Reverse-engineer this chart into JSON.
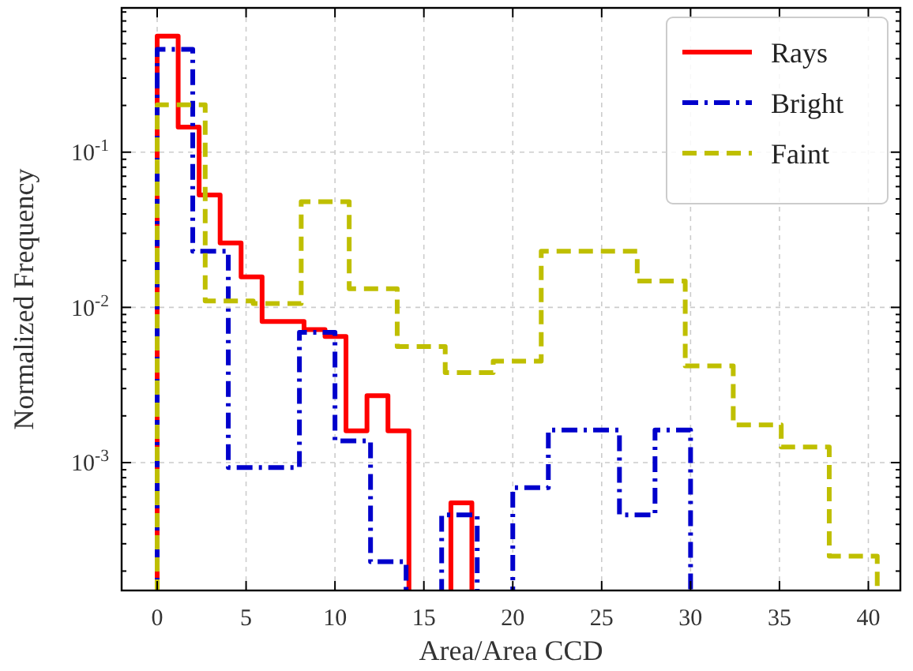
{
  "chart_data": {
    "type": "step",
    "xlabel": "Area/Area CCD",
    "ylabel": "Normalized Frequency",
    "log": "y",
    "grid": true,
    "legend": "top right",
    "xlim": [
      -2,
      41.8
    ],
    "xticks": [
      0,
      5,
      10,
      15,
      20,
      25,
      30,
      35,
      40
    ],
    "ylim": [
      0.00015,
      0.85
    ],
    "yticks": [
      {
        "value": 0.0002,
        "label": null
      },
      {
        "value": 0.0003,
        "label": null
      },
      {
        "value": 0.0004,
        "label": null
      },
      {
        "value": 0.0005,
        "label": null
      },
      {
        "value": 0.0006,
        "label": null
      },
      {
        "value": 0.0007,
        "label": null
      },
      {
        "value": 0.0008,
        "label": null
      },
      {
        "value": 0.0009,
        "label": null
      },
      {
        "value": 0.001,
        "label": "10$^{-3}$"
      },
      {
        "value": 0.002,
        "label": null
      },
      {
        "value": 0.003,
        "label": null
      },
      {
        "value": 0.004,
        "label": null
      },
      {
        "value": 0.005,
        "label": null
      },
      {
        "value": 0.006,
        "label": null
      },
      {
        "value": 0.007,
        "label": null
      },
      {
        "value": 0.008,
        "label": null
      },
      {
        "value": 0.009,
        "label": null
      },
      {
        "value": 0.01,
        "label": "10$^{-2}$"
      },
      {
        "value": 0.02,
        "label": null
      },
      {
        "value": 0.03,
        "label": null
      },
      {
        "value": 0.04,
        "label": null
      },
      {
        "value": 0.05,
        "label": null
      },
      {
        "value": 0.06,
        "label": null
      },
      {
        "value": 0.07,
        "label": null
      },
      {
        "value": 0.08,
        "label": null
      },
      {
        "value": 0.09,
        "label": null
      },
      {
        "value": 0.1,
        "label": "10$^{-1}$"
      },
      {
        "value": 0.2,
        "label": null
      },
      {
        "value": 0.3,
        "label": null
      },
      {
        "value": 0.4,
        "label": null
      },
      {
        "value": 0.5,
        "label": null
      },
      {
        "value": 0.6,
        "label": null
      },
      {
        "value": 0.7,
        "label": null
      },
      {
        "value": 0.8,
        "label": null
      }
    ],
    "series": [
      {
        "name": "Rays",
        "color": "#ff0000",
        "line_style": "solid",
        "x": [
          0,
          1.18,
          2.36,
          3.54,
          4.72,
          5.9,
          7.08,
          8.26,
          9.44,
          10.62,
          11.8,
          12.98,
          14.16,
          15.34,
          16.52,
          17.7
        ],
        "values": [
          0.56,
          0.145,
          0.053,
          0.026,
          0.0157,
          0.0081,
          0.0081,
          0.0072,
          0.0065,
          0.0016,
          0.0027,
          0.0016,
          null,
          null,
          0.00055,
          0.00055
        ]
      },
      {
        "name": "Bright",
        "color": "#0000cc",
        "line_style": "dashdot",
        "x": [
          0,
          2,
          4,
          6,
          8,
          10,
          12,
          14,
          16,
          18,
          20,
          22,
          24,
          26,
          28,
          30
        ],
        "values": [
          0.46,
          0.023,
          0.00093,
          0.00093,
          0.0069,
          0.00138,
          0.00023,
          null,
          0.00046,
          null,
          0.00069,
          0.00162,
          0.00162,
          0.00046,
          0.00162,
          0.00162
        ]
      },
      {
        "name": "Faint",
        "color": "#bfbf00",
        "line_style": "dashed",
        "x": [
          0,
          2.7,
          5.4,
          8.1,
          10.8,
          13.5,
          16.2,
          18.9,
          21.6,
          24.3,
          27,
          29.7,
          32.4,
          35.1,
          37.8,
          40.5
        ],
        "values": [
          0.202,
          0.011,
          0.0106,
          0.048,
          0.0132,
          0.0056,
          0.0038,
          0.0045,
          0.023,
          0.023,
          0.0148,
          0.0042,
          0.00175,
          0.00126,
          0.00025,
          0.00025
        ]
      }
    ]
  }
}
